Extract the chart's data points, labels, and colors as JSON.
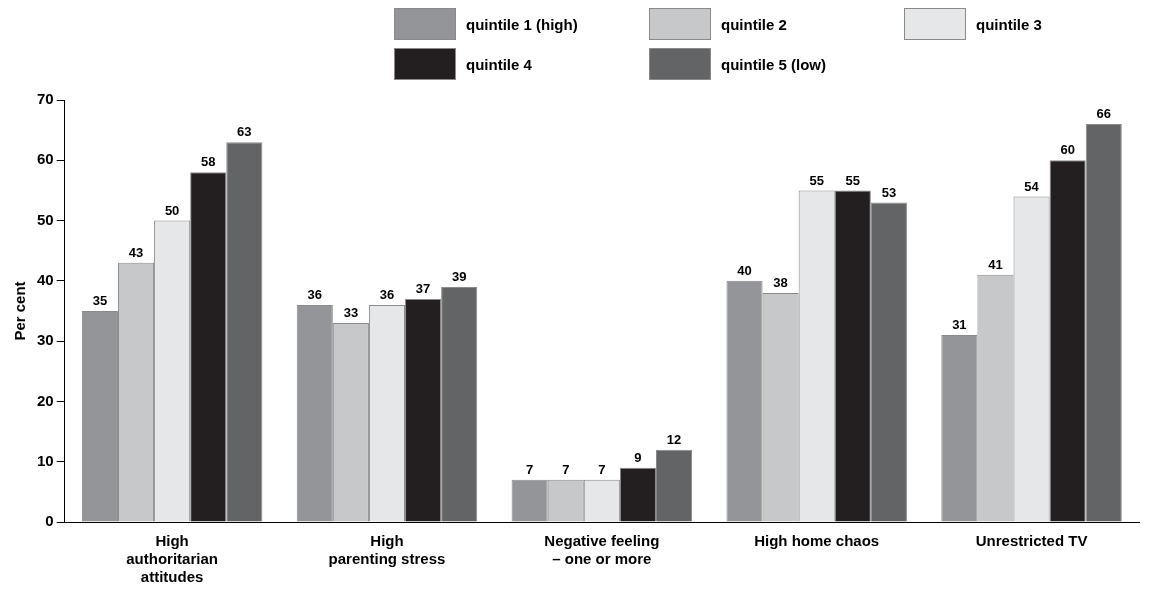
{
  "chart_data": {
    "type": "bar",
    "ylabel": "Per cent",
    "categories": [
      "High\nauthoritarian\nattitudes",
      "High\nparenting stress",
      "Negative feeling\n– one or more",
      "High home chaos",
      "Unrestricted TV"
    ],
    "series": [
      {
        "name": "quintile 1 (high)",
        "color": "#939598",
        "values": [
          35,
          36,
          7,
          40,
          31
        ]
      },
      {
        "name": "quintile 2",
        "color": "#c7c8ca",
        "values": [
          43,
          33,
          7,
          38,
          41
        ]
      },
      {
        "name": "quintile 3",
        "color": "#e6e7e8",
        "values": [
          50,
          36,
          7,
          55,
          54
        ]
      },
      {
        "name": "quintile 4",
        "color": "#231f20",
        "values": [
          58,
          37,
          9,
          55,
          60
        ]
      },
      {
        "name": "quintile 5 (low)",
        "color": "#636466",
        "values": [
          63,
          39,
          12,
          53,
          66
        ]
      }
    ],
    "ylim": [
      0,
      70
    ],
    "yticks": [
      0,
      10,
      20,
      30,
      40,
      50,
      60,
      70
    ],
    "grid": false,
    "legend": "top right",
    "data_labels": true
  }
}
